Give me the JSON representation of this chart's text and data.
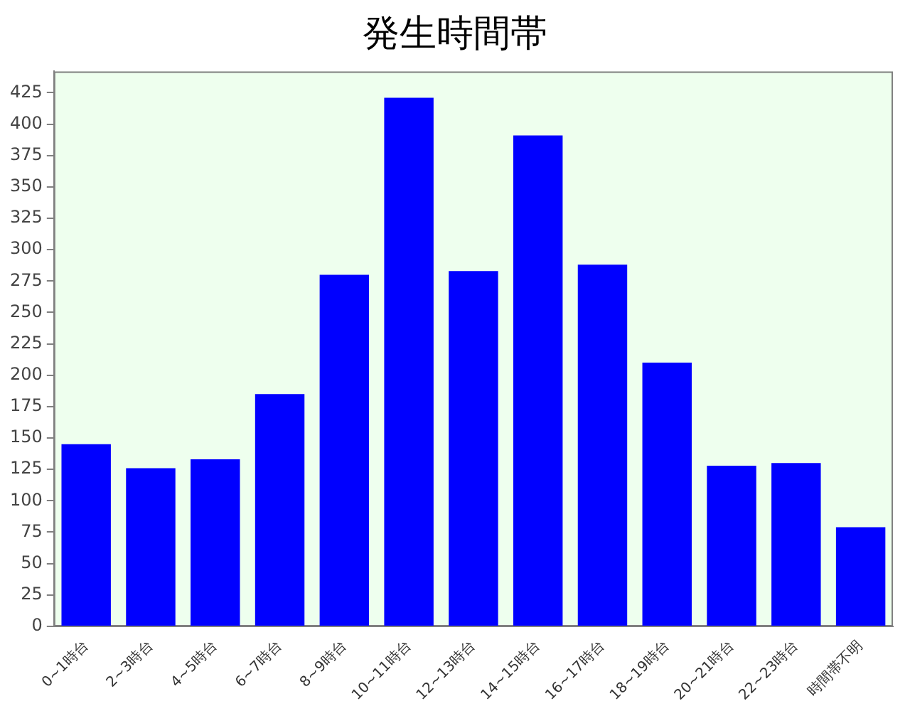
{
  "chart_data": {
    "type": "bar",
    "title": "発生時間帯",
    "categories": [
      "0~1時台",
      "2~3時台",
      "4~5時台",
      "6~7時台",
      "8~9時台",
      "10~11時台",
      "12~13時台",
      "14~15時台",
      "16~17時台",
      "18~19時台",
      "20~21時台",
      "22~23時台",
      "時間帯不明"
    ],
    "values": [
      145,
      126,
      133,
      185,
      280,
      421,
      283,
      391,
      288,
      210,
      128,
      130,
      79
    ],
    "color": "#0000ff",
    "ylim": [
      0,
      442
    ],
    "yticks": [
      0,
      25,
      50,
      75,
      100,
      125,
      150,
      175,
      200,
      225,
      250,
      275,
      300,
      325,
      350,
      375,
      400,
      425
    ],
    "grid": false,
    "legend": false
  }
}
